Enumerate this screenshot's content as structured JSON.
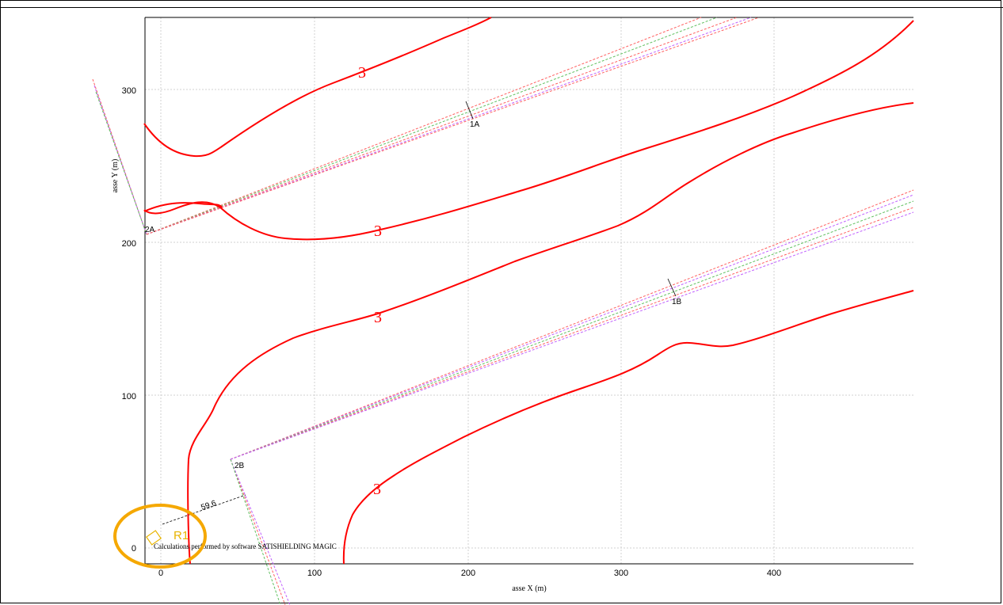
{
  "plot": {
    "x_axis_label": "asse X (m)",
    "y_axis_label": "asse Y (m)",
    "x_ticks": [
      "0",
      "100",
      "200",
      "300",
      "400"
    ],
    "y_ticks": [
      "0",
      "100",
      "200",
      "300"
    ],
    "credit_note": "Calculations performed by software SATISHIELDING MAGIC"
  },
  "sources": {
    "line_1A": "1A",
    "line_1B": "1B",
    "line_2A": "2A",
    "line_2B": "2B"
  },
  "distance_label": "59.6",
  "receptor": {
    "label": "R1",
    "color": "#e8b400"
  },
  "contours": {
    "label": "3",
    "color": "#ff0000"
  },
  "highlight": {
    "color": "#f5a800"
  }
}
